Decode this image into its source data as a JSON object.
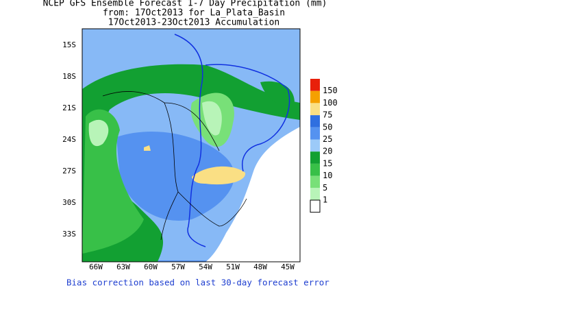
{
  "header": {
    "title_lines": [
      "NCEP GFS Ensemble Forecast 1-7 Day Precipitation (mm)",
      "from: 17Oct2013   for La_Plata_Basin",
      "17Oct2013-23Oct2013 Accumulation"
    ]
  },
  "map": {
    "lat_labels": [
      "15S",
      "18S",
      "21S",
      "24S",
      "27S",
      "30S",
      "33S"
    ],
    "lon_labels": [
      "66W",
      "63W",
      "60W",
      "57W",
      "54W",
      "51W",
      "48W",
      "45W"
    ]
  },
  "legend": {
    "labels": [
      "150",
      "100",
      "75",
      "50",
      "25",
      "20",
      "15",
      "10",
      "5",
      "1"
    ],
    "colors": [
      "#e8200a",
      "#f5a000",
      "#fadf84",
      "#2f6fe0",
      "#5592f0",
      "#9ccaf8",
      "#12a032",
      "#38c048",
      "#78e078",
      "#b8f4b8",
      "#ffffff"
    ]
  },
  "footer": {
    "note": "Bias correction based on last 30-day forecast error"
  }
}
